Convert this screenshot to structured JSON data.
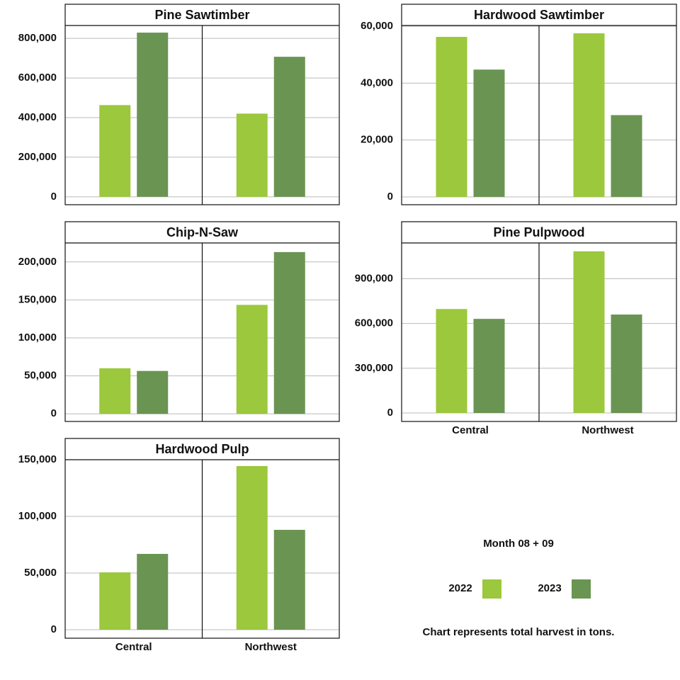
{
  "chart_data": [
    {
      "type": "bar",
      "title": "Pine Sawtimber",
      "categories": [
        null,
        null
      ],
      "series": [
        {
          "name": "2022",
          "color": "#9bc83c",
          "values": [
            463000,
            420000
          ]
        },
        {
          "name": "2023",
          "color": "#6a9452",
          "values": [
            829000,
            707000
          ]
        }
      ],
      "ylim": [
        -40000,
        865000
      ],
      "yticks": [
        0,
        {
          "value": 200000,
          "label": "200,000"
        },
        {
          "value": 400000,
          "label": "400,000"
        },
        {
          "value": 600000,
          "label": "600,000"
        },
        {
          "value": 800000,
          "label": "800,000"
        }
      ],
      "grid": true
    },
    {
      "type": "bar",
      "title": "Hardwood Sawtimber",
      "categories": [
        null,
        null
      ],
      "series": [
        {
          "name": "2022",
          "color": "#9bc83c",
          "values": [
            56250,
            57500
          ]
        },
        {
          "name": "2023",
          "color": "#6a9452",
          "values": [
            44750,
            28750
          ]
        }
      ],
      "ylim": [
        -2750,
        60250
      ],
      "yticks": [
        0,
        {
          "value": 20000,
          "label": "20,000"
        },
        {
          "value": 40000,
          "label": "40,000"
        },
        {
          "value": 60000,
          "label": "60,000"
        }
      ],
      "grid": true
    },
    {
      "type": "bar",
      "title": "Chip-N-Saw",
      "categories": [
        null,
        null
      ],
      "series": [
        {
          "name": "2022",
          "color": "#9bc83c",
          "values": [
            60000,
            143500
          ]
        },
        {
          "name": "2023",
          "color": "#6a9452",
          "values": [
            56500,
            213000
          ]
        }
      ],
      "ylim": [
        -10000,
        225000
      ],
      "yticks": [
        0,
        {
          "value": 50000,
          "label": "50,000"
        },
        {
          "value": 100000,
          "label": "100,000"
        },
        {
          "value": 150000,
          "label": "150,000"
        },
        {
          "value": 200000,
          "label": "200,000"
        }
      ],
      "grid": true
    },
    {
      "type": "bar",
      "title": "Pine Pulpwood",
      "categories": [
        "Central",
        "Northwest"
      ],
      "series": [
        {
          "name": "2022",
          "color": "#9bc83c",
          "values": [
            697000,
            1084000
          ]
        },
        {
          "name": "2023",
          "color": "#6a9452",
          "values": [
            631000,
            660000
          ]
        }
      ],
      "ylim": [
        -57000,
        1140000
      ],
      "yticks": [
        0,
        {
          "value": 300000,
          "label": "300,000"
        },
        {
          "value": 600000,
          "label": "600,000"
        },
        {
          "value": 900000,
          "label": "900,000"
        }
      ],
      "grid": true
    },
    {
      "type": "bar",
      "title": "Hardwood Pulp",
      "categories": [
        "Central",
        "Northwest"
      ],
      "series": [
        {
          "name": "2022",
          "color": "#9bc83c",
          "values": [
            50600,
            144400
          ]
        },
        {
          "name": "2023",
          "color": "#6a9452",
          "values": [
            66900,
            88100
          ]
        }
      ],
      "ylim": [
        -7500,
        150000
      ],
      "yticks": [
        0,
        {
          "value": 50000,
          "label": "50,000"
        },
        {
          "value": 100000,
          "label": "100,000"
        },
        {
          "value": 150000,
          "label": "150,000"
        }
      ],
      "grid": true
    }
  ],
  "legend_title": "Month 08 + 09",
  "note": "Chart represents total harvest in tons."
}
